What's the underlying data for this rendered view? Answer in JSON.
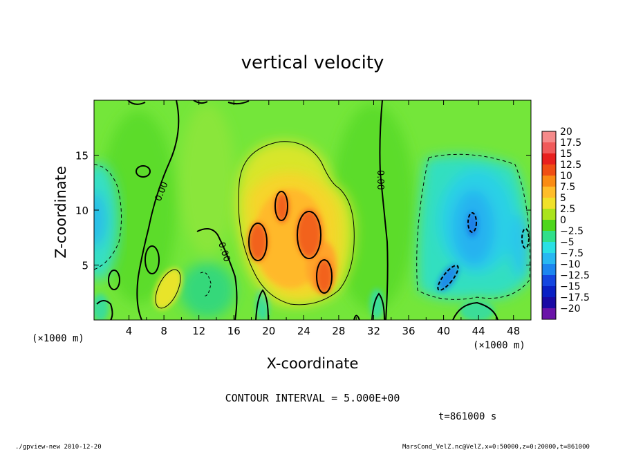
{
  "title": "vertical velocity",
  "xlabel": "X-coordinate",
  "ylabel": "Z-coordinate",
  "x_unit_left": "(×1000 m)",
  "x_unit_right": "(×1000 m)",
  "contour_interval_text": "CONTOUR INTERVAL = 5.000E+00",
  "time_text": "t=861000 s",
  "footer_left": "./gpview-new  2010-12-20",
  "footer_right": "MarsCond_VelZ.nc@VelZ,x=0:50000,z=0:20000,t=861000",
  "chart_data": {
    "type": "heatmap",
    "title": "vertical velocity",
    "xlabel": "X-coordinate",
    "ylabel": "Z-coordinate",
    "xlim": [
      0,
      50
    ],
    "ylim": [
      0,
      20
    ],
    "x_ticks": [
      "4",
      "8",
      "12",
      "16",
      "20",
      "24",
      "28",
      "32",
      "36",
      "40",
      "44",
      "48"
    ],
    "y_ticks": [
      "5",
      "10",
      "15"
    ],
    "contour_interval": 5,
    "contour_label": "0.00",
    "colorbar_labels": [
      "20",
      "17.5",
      "15",
      "12.5",
      "10",
      "7.5",
      "5",
      "2.5",
      "0",
      "−2.5",
      "−5",
      "−7.5",
      "−10",
      "−12.5",
      "−15",
      "−17.5",
      "−20"
    ],
    "colorbar_colors": [
      "#f58a8a",
      "#f05a5a",
      "#e8201e",
      "#f04e14",
      "#fa8b14",
      "#ffbd2a",
      "#f0e12a",
      "#aae31c",
      "#4ed61c",
      "#30df8a",
      "#2ae0e4",
      "#28b8f2",
      "#1c86f0",
      "#1446e0",
      "#0a20c4",
      "#1a0aa4",
      "#6a14a8"
    ],
    "features": [
      {
        "kind": "updraft_region",
        "x_range": [
          15.5,
          30
        ],
        "z_range": [
          2,
          16.5
        ],
        "peak_value": 15
      },
      {
        "kind": "updraft_core",
        "x": 19,
        "z": 7.5,
        "value": 12.5
      },
      {
        "kind": "updraft_core",
        "x": 21.5,
        "z": 10,
        "value": 12.5
      },
      {
        "kind": "updraft_core",
        "x": 25.5,
        "z": 8,
        "value": 12.5
      },
      {
        "kind": "updraft_core",
        "x": 26.5,
        "z": 4,
        "value": 12.5
      },
      {
        "kind": "updraft",
        "x": 8,
        "z": 3,
        "value": 7.5
      },
      {
        "kind": "downdraft_region",
        "x_range": [
          38,
          50
        ],
        "z_range": [
          2,
          15
        ],
        "min_value": -10
      },
      {
        "kind": "downdraft_region",
        "x_range": [
          0,
          3
        ],
        "z_range": [
          4,
          13
        ],
        "min_value": -7.5
      }
    ]
  }
}
